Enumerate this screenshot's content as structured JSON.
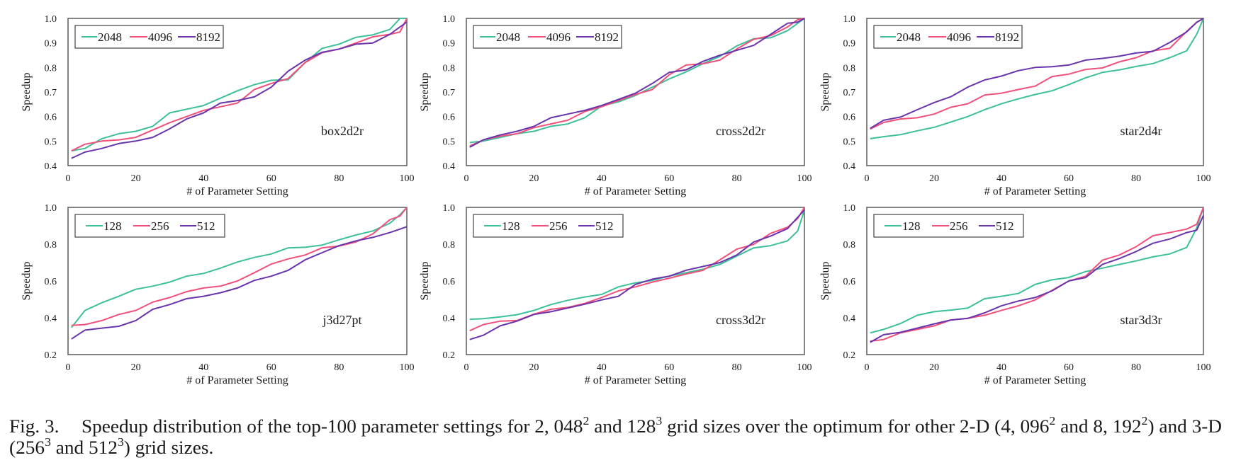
{
  "chart_data": [
    {
      "type": "line",
      "annotation": "box2d2r",
      "xlabel": "# of Parameter Setting",
      "ylabel": "Speedup",
      "xlim": [
        0,
        100
      ],
      "ylim": [
        0.4,
        1.0
      ],
      "xticks": [
        "0",
        "20",
        "40",
        "60",
        "80",
        "100"
      ],
      "yticks": [
        "0.4",
        "0.5",
        "0.6",
        "0.7",
        "0.8",
        "0.9",
        "1.0"
      ],
      "legend": "top-left",
      "grid": false,
      "x": [
        1,
        5,
        10,
        15,
        20,
        25,
        30,
        35,
        40,
        45,
        50,
        55,
        60,
        65,
        70,
        75,
        80,
        85,
        90,
        95,
        98,
        100
      ],
      "series": [
        {
          "name": "2048",
          "color": "#3dbf99",
          "values": [
            0.46,
            0.47,
            0.51,
            0.53,
            0.54,
            0.56,
            0.615,
            0.63,
            0.645,
            0.675,
            0.705,
            0.73,
            0.748,
            0.75,
            0.82,
            0.878,
            0.895,
            0.923,
            0.933,
            0.955,
            1.0,
            1.0
          ]
        },
        {
          "name": "4096",
          "color": "#f0507a",
          "values": [
            0.46,
            0.487,
            0.5,
            0.505,
            0.515,
            0.545,
            0.575,
            0.6,
            0.625,
            0.64,
            0.655,
            0.71,
            0.735,
            0.755,
            0.82,
            0.86,
            0.875,
            0.9,
            0.925,
            0.935,
            0.945,
            1.0
          ]
        },
        {
          "name": "8192",
          "color": "#6a34ad",
          "values": [
            0.43,
            0.455,
            0.47,
            0.49,
            0.5,
            0.515,
            0.55,
            0.59,
            0.615,
            0.655,
            0.665,
            0.68,
            0.72,
            0.785,
            0.83,
            0.862,
            0.875,
            0.895,
            0.9,
            0.935,
            0.965,
            0.985
          ]
        }
      ]
    },
    {
      "type": "line",
      "annotation": "cross2d2r",
      "xlabel": "# of Parameter Setting",
      "ylabel": "Speedup",
      "xlim": [
        0,
        100
      ],
      "ylim": [
        0.4,
        1.0
      ],
      "xticks": [
        "0",
        "20",
        "40",
        "60",
        "80",
        "100"
      ],
      "yticks": [
        "0.4",
        "0.5",
        "0.6",
        "0.7",
        "0.8",
        "0.9",
        "1.0"
      ],
      "legend": "top-left",
      "grid": false,
      "x": [
        1,
        5,
        10,
        15,
        20,
        25,
        30,
        35,
        40,
        45,
        50,
        55,
        60,
        65,
        70,
        75,
        80,
        85,
        90,
        95,
        98,
        100
      ],
      "series": [
        {
          "name": "2048",
          "color": "#3dbf99",
          "values": [
            0.494,
            0.5,
            0.515,
            0.53,
            0.54,
            0.56,
            0.57,
            0.595,
            0.643,
            0.66,
            0.686,
            0.72,
            0.753,
            0.782,
            0.816,
            0.845,
            0.888,
            0.917,
            0.921,
            0.95,
            0.98,
            1.0
          ]
        },
        {
          "name": "4096",
          "color": "#f0507a",
          "values": [
            0.48,
            0.505,
            0.52,
            0.53,
            0.555,
            0.57,
            0.585,
            0.62,
            0.64,
            0.665,
            0.69,
            0.71,
            0.77,
            0.81,
            0.815,
            0.83,
            0.875,
            0.915,
            0.93,
            0.965,
            0.995,
            1.0
          ]
        },
        {
          "name": "8192",
          "color": "#6a34ad",
          "values": [
            0.475,
            0.505,
            0.525,
            0.54,
            0.56,
            0.595,
            0.61,
            0.625,
            0.645,
            0.67,
            0.695,
            0.735,
            0.78,
            0.79,
            0.825,
            0.85,
            0.87,
            0.89,
            0.935,
            0.98,
            0.985,
            1.0
          ]
        }
      ]
    },
    {
      "type": "line",
      "annotation": "star2d4r",
      "xlabel": "# of Parameter Setting",
      "ylabel": "Speedup",
      "xlim": [
        0,
        100
      ],
      "ylim": [
        0.4,
        1.0
      ],
      "xticks": [
        "0",
        "20",
        "40",
        "60",
        "80",
        "100"
      ],
      "yticks": [
        "0.4",
        "0.5",
        "0.6",
        "0.7",
        "0.8",
        "0.9",
        "1.0"
      ],
      "legend": "top-left",
      "grid": false,
      "x": [
        1,
        5,
        10,
        15,
        20,
        25,
        30,
        35,
        40,
        45,
        50,
        55,
        60,
        65,
        70,
        75,
        80,
        85,
        90,
        95,
        98,
        100
      ],
      "series": [
        {
          "name": "2048",
          "color": "#3dbf99",
          "values": [
            0.51,
            0.518,
            0.526,
            0.542,
            0.556,
            0.578,
            0.6,
            0.628,
            0.652,
            0.672,
            0.69,
            0.705,
            0.73,
            0.758,
            0.78,
            0.79,
            0.804,
            0.816,
            0.84,
            0.868,
            0.935,
            1.0
          ]
        },
        {
          "name": "4096",
          "color": "#f0507a",
          "values": [
            0.549,
            0.576,
            0.59,
            0.595,
            0.61,
            0.638,
            0.652,
            0.688,
            0.695,
            0.71,
            0.724,
            0.763,
            0.773,
            0.792,
            0.798,
            0.823,
            0.84,
            0.868,
            0.878,
            0.947,
            0.984,
            1.0
          ]
        },
        {
          "name": "8192",
          "color": "#6a34ad",
          "values": [
            0.552,
            0.585,
            0.598,
            0.628,
            0.657,
            0.681,
            0.72,
            0.749,
            0.765,
            0.787,
            0.8,
            0.803,
            0.81,
            0.83,
            0.837,
            0.846,
            0.859,
            0.866,
            0.902,
            0.945,
            0.984,
            1.0
          ]
        }
      ]
    },
    {
      "type": "line",
      "annotation": "j3d27pt",
      "xlabel": "# of Parameter Setting",
      "ylabel": "Speedup",
      "xlim": [
        0,
        100
      ],
      "ylim": [
        0.2,
        1.0
      ],
      "xticks": [
        "0",
        "20",
        "40",
        "60",
        "80",
        "100"
      ],
      "yticks": [
        "0.2",
        "0.4",
        "0.6",
        "0.8",
        "1.0"
      ],
      "legend": "top-left",
      "grid": false,
      "x": [
        1,
        5,
        10,
        15,
        20,
        25,
        30,
        35,
        40,
        45,
        50,
        55,
        60,
        65,
        70,
        75,
        80,
        85,
        90,
        95,
        98,
        100
      ],
      "series": [
        {
          "name": "128",
          "color": "#3dbf99",
          "values": [
            0.347,
            0.44,
            0.482,
            0.517,
            0.555,
            0.572,
            0.594,
            0.626,
            0.641,
            0.67,
            0.703,
            0.728,
            0.747,
            0.78,
            0.783,
            0.795,
            0.824,
            0.85,
            0.872,
            0.914,
            0.96,
            1.0
          ]
        },
        {
          "name": "256",
          "color": "#f0507a",
          "values": [
            0.359,
            0.363,
            0.385,
            0.418,
            0.44,
            0.485,
            0.51,
            0.542,
            0.562,
            0.572,
            0.6,
            0.645,
            0.692,
            0.72,
            0.741,
            0.78,
            0.79,
            0.812,
            0.856,
            0.933,
            0.953,
            1.0
          ]
        },
        {
          "name": "512",
          "color": "#6a34ad",
          "values": [
            0.285,
            0.333,
            0.344,
            0.354,
            0.385,
            0.446,
            0.472,
            0.504,
            0.517,
            0.536,
            0.562,
            0.603,
            0.626,
            0.658,
            0.715,
            0.754,
            0.792,
            0.818,
            0.837,
            0.863,
            0.882,
            0.895
          ]
        }
      ]
    },
    {
      "type": "line",
      "annotation": "cross3d2r",
      "xlabel": "# of Parameter Setting",
      "ylabel": "Speedup",
      "xlim": [
        0,
        100
      ],
      "ylim": [
        0.2,
        1.0
      ],
      "xticks": [
        "0",
        "20",
        "40",
        "60",
        "80",
        "100"
      ],
      "yticks": [
        "0.2",
        "0.4",
        "0.6",
        "0.8",
        "1.0"
      ],
      "legend": "top-left",
      "grid": false,
      "x": [
        1,
        5,
        10,
        15,
        20,
        25,
        30,
        35,
        40,
        45,
        50,
        55,
        60,
        65,
        70,
        75,
        80,
        85,
        90,
        95,
        98,
        100
      ],
      "series": [
        {
          "name": "128",
          "color": "#3dbf99",
          "values": [
            0.392,
            0.395,
            0.405,
            0.417,
            0.44,
            0.472,
            0.495,
            0.513,
            0.527,
            0.568,
            0.59,
            0.603,
            0.626,
            0.645,
            0.664,
            0.69,
            0.735,
            0.78,
            0.792,
            0.818,
            0.872,
            0.985
          ]
        },
        {
          "name": "256",
          "color": "#f0507a",
          "values": [
            0.33,
            0.363,
            0.382,
            0.385,
            0.42,
            0.446,
            0.456,
            0.478,
            0.51,
            0.546,
            0.568,
            0.594,
            0.615,
            0.638,
            0.658,
            0.715,
            0.773,
            0.799,
            0.859,
            0.892,
            0.94,
            1.0
          ]
        },
        {
          "name": "512",
          "color": "#6a34ad",
          "values": [
            0.282,
            0.305,
            0.356,
            0.382,
            0.418,
            0.433,
            0.453,
            0.474,
            0.497,
            0.517,
            0.581,
            0.61,
            0.626,
            0.658,
            0.679,
            0.7,
            0.741,
            0.812,
            0.844,
            0.885,
            0.946,
            0.985
          ]
        }
      ]
    },
    {
      "type": "line",
      "annotation": "star3d3r",
      "xlabel": "# of Parameter Setting",
      "ylabel": "Speedup",
      "xlim": [
        0,
        100
      ],
      "ylim": [
        0.2,
        1.0
      ],
      "xticks": [
        "0",
        "20",
        "40",
        "60",
        "80",
        "100"
      ],
      "yticks": [
        "0.2",
        "0.4",
        "0.6",
        "0.8",
        "1.0"
      ],
      "legend": "top-left",
      "grid": false,
      "x": [
        1,
        5,
        10,
        15,
        20,
        25,
        30,
        35,
        40,
        45,
        50,
        55,
        60,
        65,
        70,
        75,
        80,
        85,
        90,
        95,
        98,
        100
      ],
      "series": [
        {
          "name": "128",
          "color": "#3dbf99",
          "values": [
            0.318,
            0.337,
            0.369,
            0.414,
            0.433,
            0.442,
            0.453,
            0.504,
            0.517,
            0.532,
            0.581,
            0.606,
            0.619,
            0.651,
            0.67,
            0.69,
            0.709,
            0.731,
            0.747,
            0.782,
            0.888,
            1.0
          ]
        },
        {
          "name": "256",
          "color": "#f0507a",
          "values": [
            0.273,
            0.282,
            0.318,
            0.337,
            0.356,
            0.388,
            0.397,
            0.414,
            0.44,
            0.465,
            0.497,
            0.549,
            0.6,
            0.626,
            0.713,
            0.741,
            0.786,
            0.846,
            0.863,
            0.882,
            0.908,
            1.0
          ]
        },
        {
          "name": "512",
          "color": "#6a34ad",
          "values": [
            0.267,
            0.308,
            0.321,
            0.344,
            0.367,
            0.388,
            0.397,
            0.427,
            0.465,
            0.491,
            0.51,
            0.546,
            0.6,
            0.619,
            0.69,
            0.722,
            0.76,
            0.805,
            0.828,
            0.863,
            0.876,
            0.956
          ]
        }
      ]
    }
  ],
  "caption": {
    "label": "Fig. 3.",
    "line1": [
      {
        "t": "Speedup distribution of the top-100 parameter settings for 2, 048",
        "s": "2"
      },
      {
        "t": " and 128",
        "s": "3"
      },
      {
        "t": " grid sizes over the optimum for other 2-D (4, 096",
        "s": "2"
      },
      {
        "t": " and 8, 192",
        "s": "2"
      },
      {
        "t": ") and 3-D",
        "s": ""
      }
    ],
    "line2": [
      {
        "t": "(256",
        "s": "3"
      },
      {
        "t": " and 512",
        "s": "3"
      },
      {
        "t": ") grid sizes.",
        "s": ""
      }
    ]
  }
}
